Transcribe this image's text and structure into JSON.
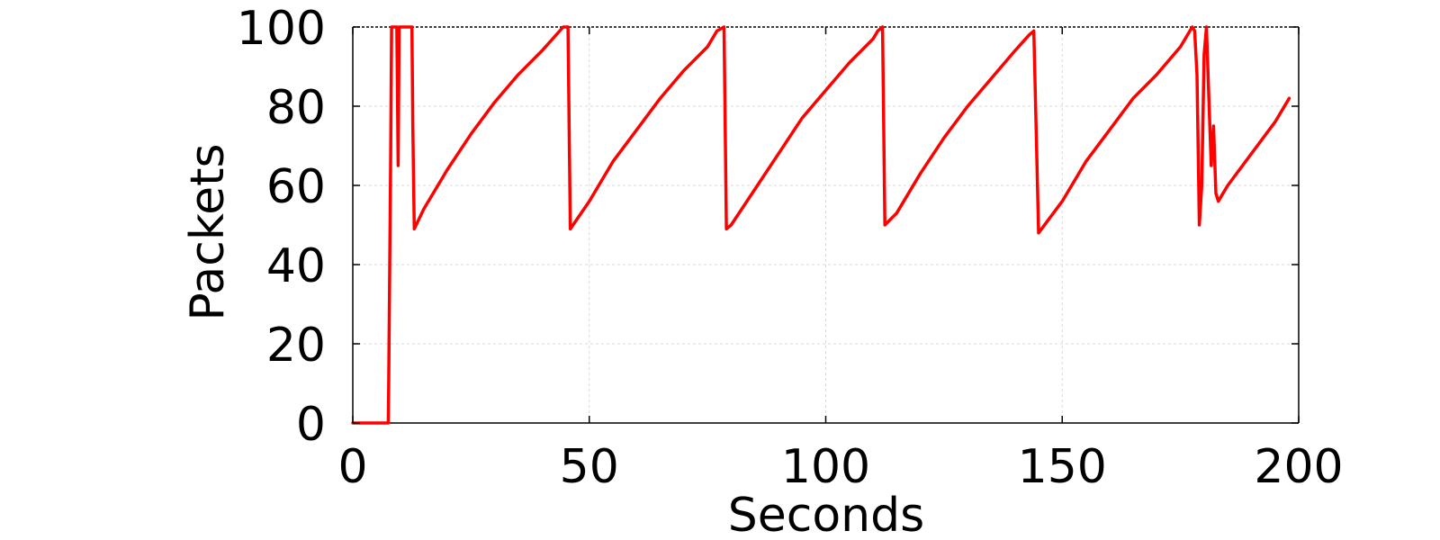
{
  "chart_data": {
    "type": "line",
    "title": "",
    "xlabel": "Seconds",
    "ylabel": "Packets",
    "xlim": [
      0,
      200
    ],
    "ylim": [
      0,
      100
    ],
    "x_ticks": [
      0,
      50,
      100,
      150,
      200
    ],
    "y_ticks": [
      0,
      20,
      40,
      60,
      80,
      100
    ],
    "x_tick_labels": [
      "0",
      "50",
      "100",
      "150",
      "200"
    ],
    "y_tick_labels": [
      "0",
      "20",
      "40",
      "60",
      "80",
      "100"
    ],
    "grid": true,
    "legend": "none",
    "series": [
      {
        "name": "Packets",
        "color": "#ff0000",
        "x": [
          0,
          7.5,
          7.6,
          8,
          8.2,
          8.6,
          9.3,
          9.6,
          9.8,
          10,
          12.5,
          12.7,
          13,
          15,
          20,
          25,
          30,
          35,
          40,
          44.5,
          45.5,
          46,
          50,
          55,
          60,
          65,
          70,
          75,
          77,
          78.5,
          79,
          80,
          85,
          90,
          95,
          100,
          105,
          110,
          111,
          112,
          112.5,
          115,
          120,
          125,
          130,
          135,
          140,
          143,
          144,
          145,
          150,
          155,
          160,
          165,
          170,
          175,
          177,
          177.5,
          178,
          178.5,
          179,
          179.5,
          180,
          180.5,
          181,
          181.5,
          182,
          182.5,
          183,
          183.5,
          185,
          190,
          195,
          198
        ],
        "y": [
          0,
          0,
          10,
          65,
          100,
          100,
          100,
          65,
          100,
          100,
          100,
          75,
          49,
          54,
          64,
          73,
          81,
          88,
          94,
          100,
          100,
          49,
          56,
          66,
          74,
          82,
          89,
          95,
          99,
          100,
          49,
          50,
          59,
          68,
          77,
          84,
          91,
          97,
          99,
          100,
          50,
          53,
          63,
          72,
          80,
          87,
          94,
          98,
          99,
          48,
          56,
          66,
          74,
          82,
          88,
          95,
          99,
          100,
          99,
          88,
          50,
          60,
          93,
          100,
          82,
          65,
          75,
          58,
          56,
          57,
          60,
          68,
          76,
          82
        ]
      }
    ]
  }
}
